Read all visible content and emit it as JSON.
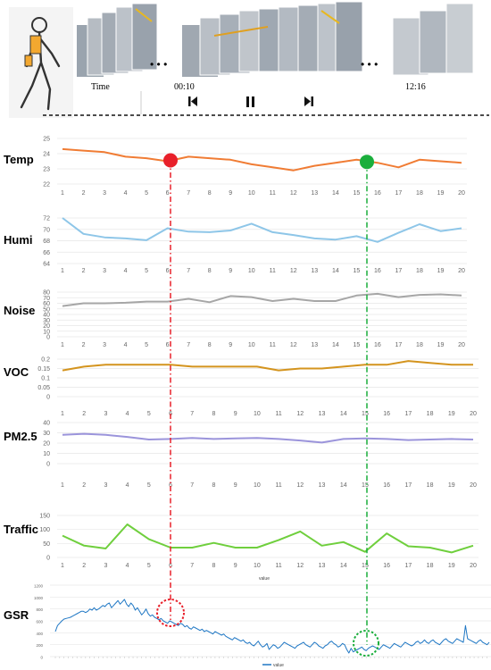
{
  "header": {
    "time_labels": [
      "Time",
      "00:10",
      "12:16"
    ],
    "ellipsis": "• • •",
    "controls": {
      "prev_icon": "skip-back-icon",
      "pause_icon": "pause-icon",
      "next_icon": "skip-forward-icon"
    },
    "figure_icon": "walking-person-with-sensors-icon"
  },
  "chart_data": [
    {
      "type": "line",
      "title": "Temp",
      "color": "#f07c34",
      "x": [
        1,
        2,
        3,
        4,
        5,
        6,
        7,
        8,
        9,
        10,
        11,
        12,
        13,
        14,
        15,
        16,
        17,
        18,
        19,
        20
      ],
      "values": [
        24.3,
        24.2,
        24.1,
        23.8,
        23.7,
        23.5,
        23.8,
        23.7,
        23.6,
        23.3,
        23.1,
        22.9,
        23.2,
        23.4,
        23.6,
        23.4,
        23.1,
        23.6,
        23.5,
        23.4
      ],
      "ylim": [
        22,
        25
      ],
      "yticks": [
        22,
        23,
        24,
        25
      ],
      "markers": [
        {
          "x": 6,
          "color": "#e8202a"
        },
        {
          "x": 15.6,
          "color": "#1aae3c"
        }
      ]
    },
    {
      "type": "line",
      "title": "Humi",
      "color": "#8ec6e8",
      "x": [
        1,
        2,
        3,
        4,
        5,
        6,
        7,
        8,
        9,
        10,
        11,
        12,
        13,
        14,
        15,
        16,
        17,
        18,
        19,
        20
      ],
      "values": [
        72,
        69.2,
        68.6,
        68.4,
        68.1,
        70.2,
        69.6,
        69.5,
        69.8,
        71,
        69.5,
        69,
        68.4,
        68.2,
        68.8,
        67.8,
        69.4,
        70.9,
        69.7,
        70.2
      ],
      "ylim": [
        64,
        72
      ],
      "yticks": [
        64,
        66,
        68,
        70,
        72
      ]
    },
    {
      "type": "line",
      "title": "Noise",
      "color": "#a6a6a6",
      "x": [
        1,
        2,
        3,
        4,
        5,
        6,
        7,
        8,
        9,
        10,
        11,
        12,
        13,
        14,
        15,
        16,
        17,
        18,
        19,
        20
      ],
      "values": [
        55,
        60,
        60,
        61,
        63,
        63,
        68,
        62,
        73,
        71,
        64,
        68,
        64,
        64,
        74,
        77,
        71,
        75,
        76,
        74
      ],
      "ylim": [
        0,
        80
      ],
      "yticks": [
        0,
        10,
        20,
        30,
        40,
        50,
        60,
        70,
        80
      ]
    },
    {
      "type": "line",
      "title": "VOC",
      "color": "#d4941e",
      "x": [
        1,
        2,
        3,
        4,
        5,
        6,
        7,
        8,
        9,
        10,
        11,
        12,
        13,
        14,
        15,
        16,
        17,
        18,
        19,
        20
      ],
      "values": [
        0.14,
        0.16,
        0.17,
        0.17,
        0.17,
        0.17,
        0.16,
        0.16,
        0.16,
        0.16,
        0.14,
        0.15,
        0.15,
        0.16,
        0.17,
        0.17,
        0.19,
        0.18,
        0.17,
        0.17
      ],
      "ylim": [
        0,
        0.2
      ],
      "yticks": [
        0,
        0.05,
        0.1,
        0.15,
        0.2
      ]
    },
    {
      "type": "line",
      "title": "PM2.5",
      "color": "#9b94db",
      "x": [
        1,
        2,
        3,
        4,
        5,
        6,
        7,
        8,
        9,
        10,
        11,
        12,
        13,
        14,
        15,
        16,
        17,
        18,
        19,
        20
      ],
      "values": [
        28,
        29,
        28,
        26,
        23.5,
        24,
        25,
        24,
        24.5,
        25,
        24,
        22.5,
        20.5,
        24,
        24.5,
        24,
        23,
        23.5,
        24,
        23.5
      ],
      "ylim": [
        0,
        40
      ],
      "yticks": [
        0,
        10,
        20,
        30,
        40
      ]
    },
    {
      "type": "line",
      "title": "Traffic",
      "color": "#6fcf3d",
      "x": [
        1,
        2,
        3,
        4,
        5,
        6,
        7,
        8,
        9,
        10,
        11,
        12,
        13,
        14,
        15,
        16,
        17,
        18,
        19,
        20
      ],
      "values": [
        78,
        42,
        32,
        118,
        65,
        35,
        35,
        52,
        35,
        35,
        62,
        93,
        42,
        55,
        20,
        86,
        40,
        35,
        18,
        42
      ],
      "ylim": [
        0,
        150
      ],
      "yticks": [
        0,
        50,
        100,
        150
      ],
      "xlabel": "value"
    },
    {
      "type": "line",
      "title": "GSR",
      "color": "#1f77c4",
      "ylim": [
        0,
        1200
      ],
      "yticks": [
        0,
        200,
        400,
        600,
        800,
        1000,
        1200
      ],
      "legend": "value",
      "values": [
        420,
        520,
        560,
        600,
        630,
        640,
        650,
        660,
        680,
        700,
        720,
        740,
        760,
        760,
        740,
        760,
        800,
        780,
        820,
        780,
        800,
        830,
        860,
        840,
        880,
        900,
        820,
        860,
        900,
        940,
        880,
        920,
        960,
        880,
        840,
        900,
        860,
        780,
        820,
        760,
        700,
        740,
        800,
        720,
        680,
        700,
        660,
        640,
        620,
        640,
        600,
        580,
        560,
        600,
        580,
        560,
        540,
        520,
        560,
        540,
        500,
        520,
        480,
        460,
        500,
        480,
        460,
        440,
        460,
        420,
        440,
        420,
        400,
        380,
        420,
        400,
        380,
        360,
        380,
        340,
        320,
        300,
        280,
        320,
        300,
        280,
        260,
        280,
        240,
        220,
        240,
        200,
        180,
        220,
        260,
        200,
        160,
        180,
        220,
        120,
        160,
        200,
        180,
        140,
        160,
        200,
        240,
        220,
        200,
        180,
        160,
        140,
        180,
        200,
        220,
        240,
        200,
        180,
        160,
        200,
        240,
        220,
        180,
        160,
        140,
        180,
        200,
        240,
        260,
        220,
        200,
        160,
        180,
        220,
        200,
        120,
        60,
        140,
        80,
        100,
        120,
        140,
        160,
        120,
        100,
        140,
        160,
        180,
        160,
        140,
        120,
        160,
        200,
        180,
        160,
        140,
        180,
        220,
        200,
        180,
        160,
        200,
        240,
        220,
        200,
        180,
        200,
        240,
        260,
        220,
        240,
        280,
        240,
        220,
        260,
        280,
        240,
        220,
        200,
        240,
        280,
        300,
        260,
        240,
        220,
        260,
        300,
        280,
        260,
        240,
        520,
        300,
        280,
        260,
        240,
        220,
        260,
        280,
        240,
        220,
        200,
        240
      ]
    }
  ]
}
